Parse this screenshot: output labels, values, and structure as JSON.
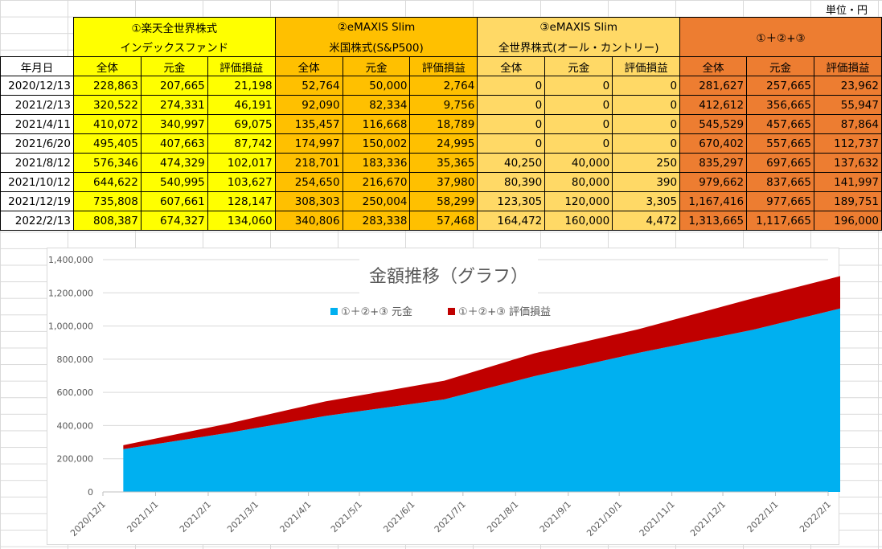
{
  "unit_label": "単位・円",
  "table": {
    "date_header": "年月日",
    "groups": [
      {
        "line1": "①楽天全世界株式",
        "line2": "インデックスファンド",
        "color": "#ffff00"
      },
      {
        "line1": "②eMAXIS Slim",
        "line2": "米国株式(S&P500)",
        "color": "#ffc000"
      },
      {
        "line1": "③eMAXIS Slim",
        "line2": "全世界株式(オール・カントリー)",
        "color": "#ffd966"
      },
      {
        "line1": "①＋②+③",
        "line2": "",
        "color": "#ed7d31"
      }
    ],
    "sub_headers": [
      "全体",
      "元金",
      "評価損益"
    ],
    "rows": [
      {
        "date": "2020/12/13",
        "values": [
          "228,863",
          "207,665",
          "21,198",
          "52,764",
          "50,000",
          "2,764",
          "0",
          "0",
          "0",
          "281,627",
          "257,665",
          "23,962"
        ]
      },
      {
        "date": "2021/2/13",
        "values": [
          "320,522",
          "274,331",
          "46,191",
          "92,090",
          "82,334",
          "9,756",
          "0",
          "0",
          "0",
          "412,612",
          "356,665",
          "55,947"
        ]
      },
      {
        "date": "2021/4/11",
        "values": [
          "410,072",
          "340,997",
          "69,075",
          "135,457",
          "116,668",
          "18,789",
          "0",
          "0",
          "0",
          "545,529",
          "457,665",
          "87,864"
        ]
      },
      {
        "date": "2021/6/20",
        "values": [
          "495,405",
          "407,663",
          "87,742",
          "174,997",
          "150,002",
          "24,995",
          "0",
          "0",
          "0",
          "670,402",
          "557,665",
          "112,737"
        ]
      },
      {
        "date": "2021/8/12",
        "values": [
          "576,346",
          "474,329",
          "102,017",
          "218,701",
          "183,336",
          "35,365",
          "40,250",
          "40,000",
          "250",
          "835,297",
          "697,665",
          "137,632"
        ]
      },
      {
        "date": "2021/10/12",
        "values": [
          "644,622",
          "540,995",
          "103,627",
          "254,650",
          "216,670",
          "37,980",
          "80,390",
          "80,000",
          "390",
          "979,662",
          "837,665",
          "141,997"
        ]
      },
      {
        "date": "2021/12/19",
        "values": [
          "735,808",
          "607,661",
          "128,147",
          "308,303",
          "250,004",
          "58,299",
          "123,305",
          "120,000",
          "3,305",
          "1,167,416",
          "977,665",
          "189,751"
        ]
      },
      {
        "date": "2022/2/13",
        "values": [
          "808,387",
          "674,327",
          "134,060",
          "340,806",
          "283,338",
          "57,468",
          "164,472",
          "160,000",
          "4,472",
          "1,313,665",
          "1,117,665",
          "196,000"
        ]
      }
    ]
  },
  "chart_data": {
    "type": "area",
    "stacked": true,
    "title": "金額推移（グラフ）",
    "legend_position": "top",
    "x": [
      "2020/12/13",
      "2021/2/13",
      "2021/4/11",
      "2021/6/20",
      "2021/8/12",
      "2021/10/12",
      "2021/12/19",
      "2022/2/13"
    ],
    "series": [
      {
        "name": "①＋②+③ 元金",
        "color": "#00b0f0",
        "values": [
          257665,
          356665,
          457665,
          557665,
          697665,
          837665,
          977665,
          1117665
        ]
      },
      {
        "name": "①＋②+③ 評価損益",
        "color": "#c00000",
        "values": [
          23962,
          55947,
          87864,
          112737,
          137632,
          141997,
          189751,
          196000
        ]
      }
    ],
    "x_tick_labels": [
      "2020/12/1",
      "2021/1/1",
      "2021/2/1",
      "2021/3/1",
      "2021/4/1",
      "2021/5/1",
      "2021/6/1",
      "2021/7/1",
      "2021/8/1",
      "2021/9/1",
      "2021/10/1",
      "2021/11/1",
      "2021/12/1",
      "2022/1/1",
      "2022/2/1"
    ],
    "y_tick_labels": [
      "0",
      "200,000",
      "400,000",
      "600,000",
      "800,000",
      "1,000,000",
      "1,200,000",
      "1,400,000"
    ],
    "ylim": [
      0,
      1400000
    ],
    "gridlines": true
  }
}
